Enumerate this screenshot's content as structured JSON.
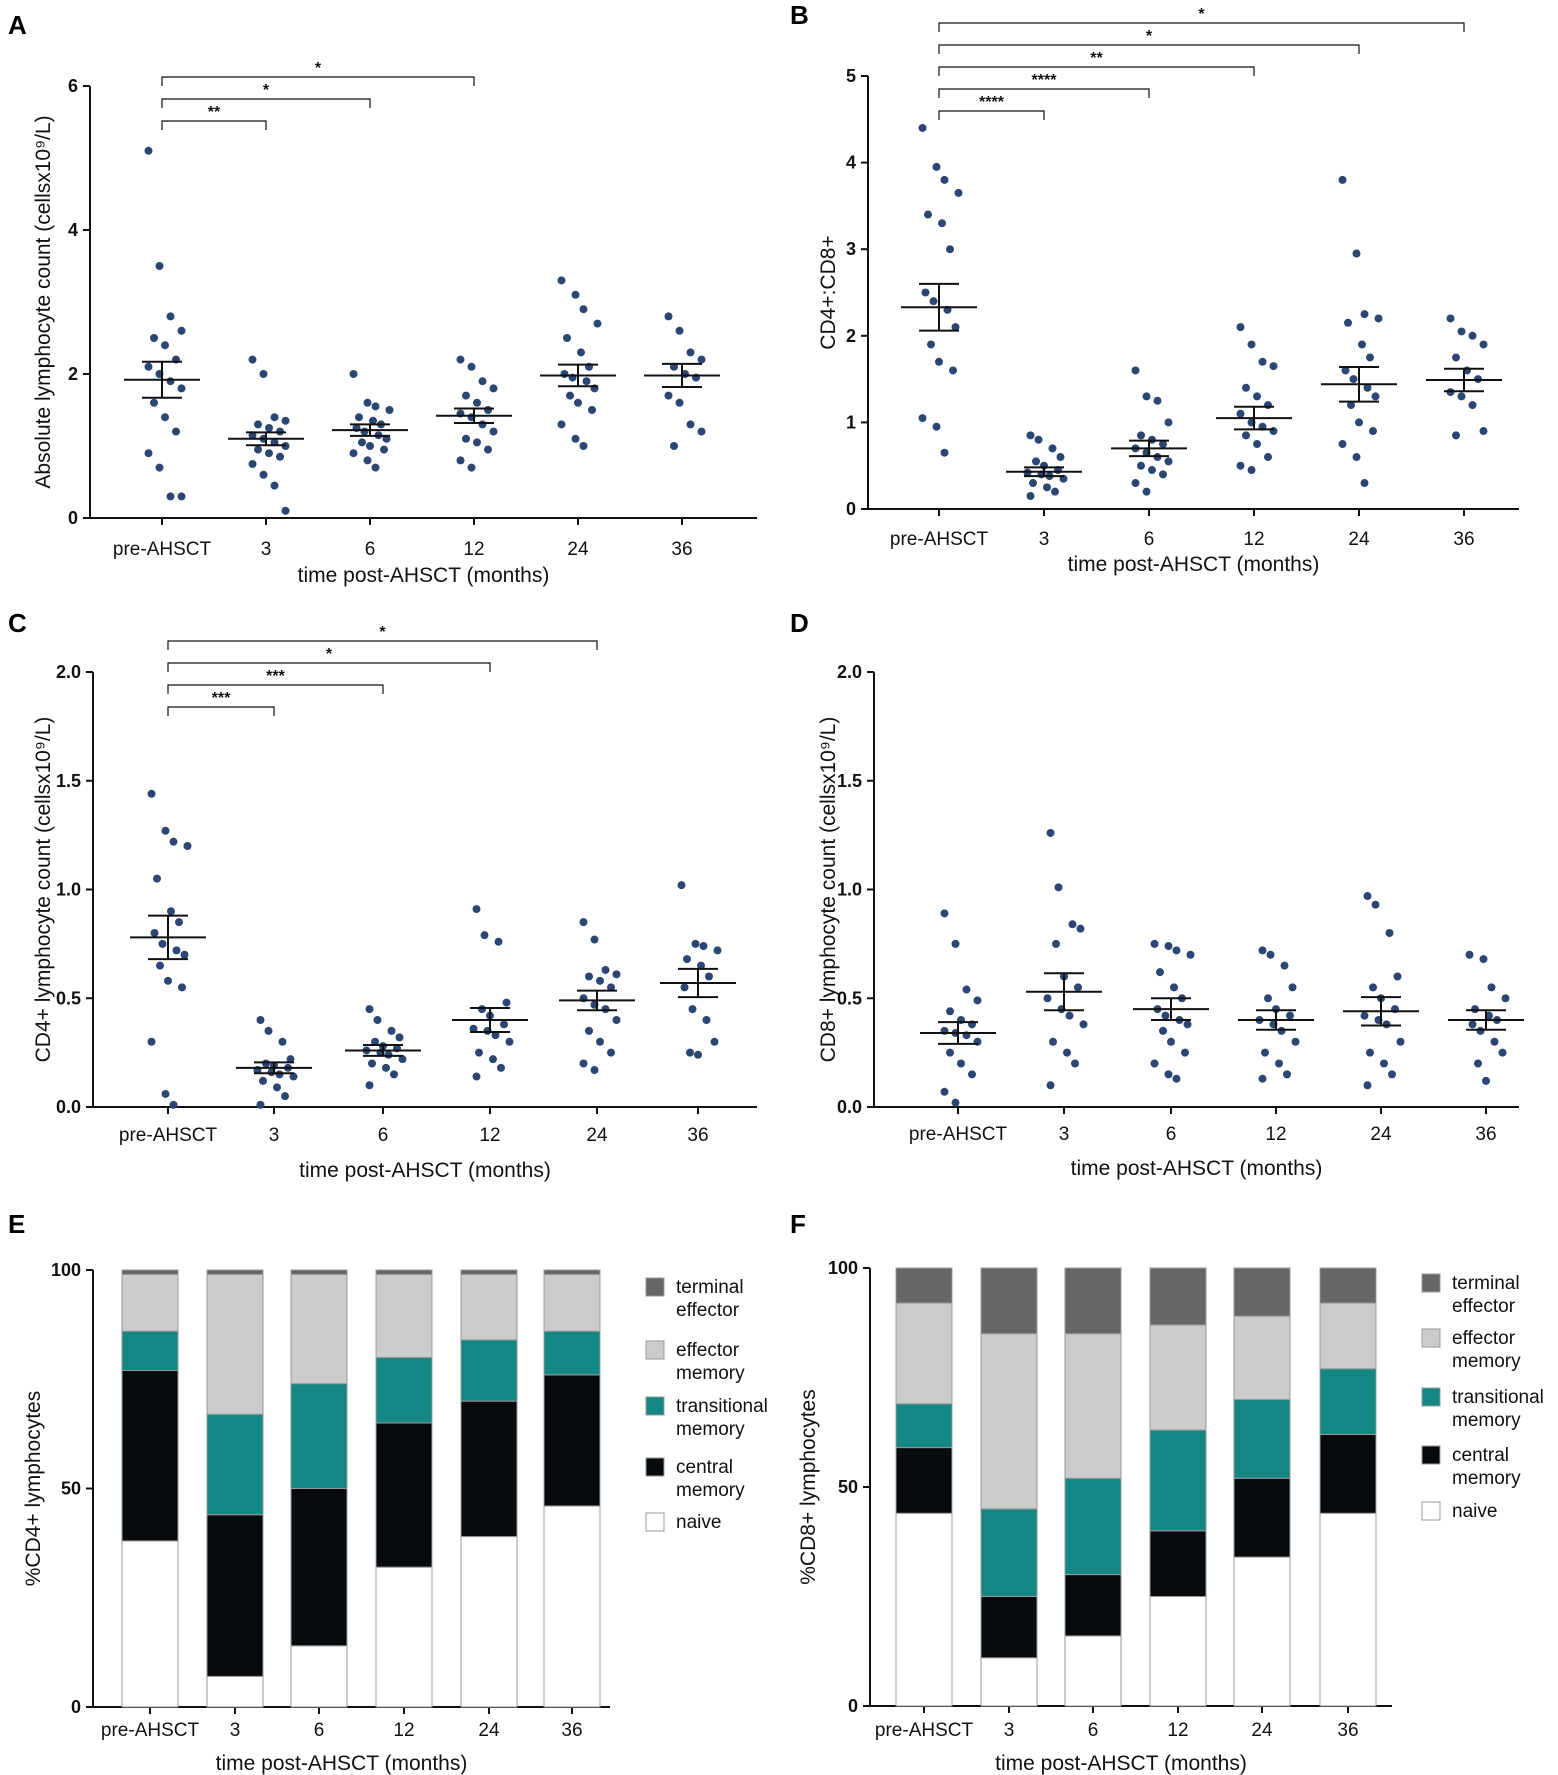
{
  "figure": {
    "panels": [
      "A",
      "B",
      "C",
      "D",
      "E",
      "F"
    ]
  },
  "colors": {
    "dot": "#2b4673",
    "axis": "#111111",
    "naive": "#ffffff",
    "central_memory": "#070b0d",
    "transitional_memory": "#148784",
    "effector_memory": "#cccccc",
    "terminal_effector": "#666666"
  },
  "chart_data": [
    {
      "panel": "A",
      "type": "scatter",
      "categories": [
        "pre-AHSCT",
        "3",
        "6",
        "12",
        "24",
        "36"
      ],
      "xlabel": "time post-AHSCT (months)",
      "ylabel": "Absolute lymphocyte count (cellsx10⁹/L)",
      "ylim": [
        0,
        6
      ],
      "yticks": [
        0,
        2,
        4,
        6
      ],
      "ytick_labels": [
        "0",
        "2",
        "4",
        "6"
      ],
      "points": [
        [
          5.1,
          3.5,
          2.8,
          2.6,
          2.5,
          2.4,
          2.2,
          2.1,
          2.0,
          1.9,
          1.8,
          1.6,
          1.4,
          1.2,
          0.9,
          0.7,
          0.3,
          0.3
        ],
        [
          2.2,
          2.0,
          1.4,
          1.35,
          1.3,
          1.25,
          1.2,
          1.15,
          1.1,
          1.05,
          1.0,
          0.95,
          0.9,
          0.85,
          0.75,
          0.6,
          0.45,
          0.1
        ],
        [
          2.0,
          1.6,
          1.55,
          1.5,
          1.4,
          1.35,
          1.3,
          1.25,
          1.2,
          1.15,
          1.1,
          1.05,
          1.0,
          0.95,
          0.9,
          0.8,
          0.7
        ],
        [
          2.2,
          2.1,
          1.9,
          1.8,
          1.7,
          1.6,
          1.5,
          1.45,
          1.4,
          1.3,
          1.2,
          1.1,
          1.05,
          0.95,
          0.8,
          0.7
        ],
        [
          3.3,
          3.1,
          2.9,
          2.7,
          2.5,
          2.3,
          2.1,
          2.0,
          1.95,
          1.9,
          1.8,
          1.7,
          1.6,
          1.5,
          1.3,
          1.1,
          1.0
        ],
        [
          2.8,
          2.6,
          2.3,
          2.2,
          2.1,
          2.0,
          1.95,
          1.7,
          1.6,
          1.3,
          1.2,
          1.0
        ]
      ],
      "mean": [
        1.92,
        1.1,
        1.22,
        1.42,
        1.98,
        1.98
      ],
      "sem": [
        0.25,
        0.09,
        0.08,
        0.1,
        0.15,
        0.16
      ],
      "significance": [
        {
          "from": 0,
          "to": 1,
          "label": "**"
        },
        {
          "from": 0,
          "to": 2,
          "label": "*"
        },
        {
          "from": 0,
          "to": 3,
          "label": "*"
        }
      ]
    },
    {
      "panel": "B",
      "type": "scatter",
      "categories": [
        "pre-AHSCT",
        "3",
        "6",
        "12",
        "24",
        "36"
      ],
      "xlabel": "time post-AHSCT (months)",
      "ylabel": "CD4+:CD8+",
      "ylim": [
        0,
        5
      ],
      "yticks": [
        0,
        1,
        2,
        3,
        4,
        5
      ],
      "ytick_labels": [
        "0",
        "1",
        "2",
        "3",
        "4",
        "5"
      ],
      "points": [
        [
          4.4,
          3.95,
          3.8,
          3.65,
          3.4,
          3.3,
          3.0,
          2.5,
          2.4,
          2.3,
          2.1,
          1.9,
          1.7,
          1.6,
          1.05,
          0.95,
          0.65
        ],
        [
          0.85,
          0.8,
          0.7,
          0.6,
          0.55,
          0.5,
          0.45,
          0.42,
          0.4,
          0.38,
          0.35,
          0.3,
          0.25,
          0.2,
          0.15
        ],
        [
          1.6,
          1.3,
          1.25,
          1.0,
          0.85,
          0.8,
          0.75,
          0.7,
          0.65,
          0.6,
          0.55,
          0.5,
          0.45,
          0.4,
          0.3,
          0.2
        ],
        [
          2.1,
          1.9,
          1.7,
          1.65,
          1.4,
          1.3,
          1.2,
          1.1,
          1.0,
          0.95,
          0.9,
          0.85,
          0.75,
          0.6,
          0.5,
          0.45
        ],
        [
          3.8,
          2.95,
          2.25,
          2.2,
          2.15,
          1.9,
          1.75,
          1.6,
          1.5,
          1.4,
          1.3,
          1.2,
          1.0,
          0.9,
          0.75,
          0.6,
          0.3
        ],
        [
          2.2,
          2.05,
          2.0,
          1.9,
          1.75,
          1.6,
          1.5,
          1.35,
          1.3,
          1.2,
          0.9,
          0.85
        ]
      ],
      "mean": [
        2.33,
        0.43,
        0.7,
        1.05,
        1.44,
        1.49
      ],
      "sem": [
        0.27,
        0.05,
        0.09,
        0.13,
        0.2,
        0.13
      ],
      "significance": [
        {
          "from": 0,
          "to": 1,
          "label": "****"
        },
        {
          "from": 0,
          "to": 2,
          "label": "****"
        },
        {
          "from": 0,
          "to": 3,
          "label": "**"
        },
        {
          "from": 0,
          "to": 4,
          "label": "*"
        },
        {
          "from": 0,
          "to": 5,
          "label": "*"
        }
      ]
    },
    {
      "panel": "C",
      "type": "scatter",
      "categories": [
        "pre-AHSCT",
        "3",
        "6",
        "12",
        "24",
        "36"
      ],
      "xlabel": "time post-AHSCT (months)",
      "ylabel": "CD4+ lymphocyte count (cellsx10⁹/L)",
      "ylim": [
        0,
        2.0
      ],
      "yticks": [
        0,
        0.5,
        1.0,
        1.5,
        2.0
      ],
      "ytick_labels": [
        "0.0",
        "0.5",
        "1.0",
        "1.5",
        "2.0"
      ],
      "points": [
        [
          1.44,
          1.27,
          1.22,
          1.2,
          1.05,
          0.9,
          0.85,
          0.8,
          0.75,
          0.72,
          0.7,
          0.65,
          0.58,
          0.55,
          0.3,
          0.06,
          0.01
        ],
        [
          0.4,
          0.35,
          0.3,
          0.22,
          0.2,
          0.19,
          0.18,
          0.17,
          0.16,
          0.15,
          0.14,
          0.12,
          0.09,
          0.05,
          0.01
        ],
        [
          0.45,
          0.4,
          0.35,
          0.32,
          0.3,
          0.28,
          0.27,
          0.26,
          0.25,
          0.24,
          0.22,
          0.2,
          0.18,
          0.15,
          0.1
        ],
        [
          0.91,
          0.79,
          0.76,
          0.48,
          0.45,
          0.42,
          0.38,
          0.36,
          0.35,
          0.33,
          0.3,
          0.25,
          0.22,
          0.18,
          0.14
        ],
        [
          0.85,
          0.77,
          0.63,
          0.61,
          0.6,
          0.58,
          0.55,
          0.5,
          0.47,
          0.45,
          0.4,
          0.35,
          0.3,
          0.25,
          0.2,
          0.17
        ],
        [
          1.02,
          0.75,
          0.74,
          0.72,
          0.68,
          0.65,
          0.6,
          0.55,
          0.45,
          0.4,
          0.3,
          0.25,
          0.24
        ]
      ],
      "mean": [
        0.78,
        0.18,
        0.26,
        0.4,
        0.49,
        0.57
      ],
      "sem": [
        0.1,
        0.025,
        0.025,
        0.055,
        0.045,
        0.065
      ],
      "significance": [
        {
          "from": 0,
          "to": 1,
          "label": "***"
        },
        {
          "from": 0,
          "to": 2,
          "label": "***"
        },
        {
          "from": 0,
          "to": 3,
          "label": "*"
        },
        {
          "from": 0,
          "to": 4,
          "label": "*"
        }
      ]
    },
    {
      "panel": "D",
      "type": "scatter",
      "categories": [
        "pre-AHSCT",
        "3",
        "6",
        "12",
        "24",
        "36"
      ],
      "xlabel": "time post-AHSCT (months)",
      "ylabel": "CD8+ lymphocyte count (cellsx10⁹/L)",
      "ylim": [
        0,
        2.0
      ],
      "yticks": [
        0,
        0.5,
        1.0,
        1.5,
        2.0
      ],
      "ytick_labels": [
        "0.0",
        "0.5",
        "1.0",
        "1.5",
        "2.0"
      ],
      "points": [
        [
          0.89,
          0.75,
          0.54,
          0.49,
          0.44,
          0.4,
          0.38,
          0.35,
          0.34,
          0.33,
          0.3,
          0.25,
          0.2,
          0.15,
          0.07,
          0.02
        ],
        [
          1.26,
          1.01,
          0.84,
          0.82,
          0.75,
          0.6,
          0.55,
          0.5,
          0.45,
          0.42,
          0.38,
          0.3,
          0.25,
          0.2,
          0.1
        ],
        [
          0.75,
          0.74,
          0.72,
          0.7,
          0.62,
          0.55,
          0.5,
          0.45,
          0.42,
          0.4,
          0.38,
          0.35,
          0.3,
          0.25,
          0.2,
          0.15,
          0.13
        ],
        [
          0.72,
          0.7,
          0.65,
          0.55,
          0.5,
          0.45,
          0.42,
          0.4,
          0.38,
          0.35,
          0.3,
          0.25,
          0.2,
          0.15,
          0.13
        ],
        [
          0.97,
          0.93,
          0.8,
          0.6,
          0.55,
          0.5,
          0.45,
          0.42,
          0.4,
          0.38,
          0.3,
          0.25,
          0.2,
          0.15,
          0.1
        ],
        [
          0.7,
          0.68,
          0.55,
          0.5,
          0.45,
          0.42,
          0.4,
          0.38,
          0.35,
          0.3,
          0.25,
          0.2,
          0.12
        ]
      ],
      "mean": [
        0.34,
        0.53,
        0.45,
        0.4,
        0.44,
        0.4
      ],
      "sem": [
        0.05,
        0.085,
        0.05,
        0.045,
        0.065,
        0.045
      ],
      "significance": []
    },
    {
      "panel": "E",
      "type": "bar",
      "stacked": true,
      "categories": [
        "pre-AHSCT",
        "3",
        "6",
        "12",
        "24",
        "36"
      ],
      "xlabel": "time post-AHSCT (months)",
      "ylabel": "%CD4+ lymphocytes",
      "ylim": [
        0,
        100
      ],
      "yticks": [
        0,
        50,
        100
      ],
      "ytick_labels": [
        "0",
        "50",
        "100"
      ],
      "series": [
        {
          "name": "naive",
          "key": "naive",
          "values": [
            38,
            7,
            14,
            32,
            39,
            46
          ]
        },
        {
          "name": "central memory",
          "key": "central_memory",
          "values": [
            39,
            37,
            36,
            33,
            31,
            30
          ]
        },
        {
          "name": "transitional memory",
          "key": "transitional_memory",
          "values": [
            9,
            23,
            24,
            15,
            14,
            10
          ]
        },
        {
          "name": "effector memory",
          "key": "effector_memory",
          "values": [
            13,
            32,
            25,
            19,
            15,
            13
          ]
        },
        {
          "name": "terminal effector",
          "key": "terminal_effector",
          "values": [
            1,
            1,
            1,
            1,
            1,
            1
          ]
        }
      ],
      "legend": [
        {
          "key": "terminal_effector",
          "lines": [
            "terminal",
            "effector"
          ]
        },
        {
          "key": "effector_memory",
          "lines": [
            "effector",
            "memory"
          ]
        },
        {
          "key": "transitional_memory",
          "lines": [
            "transitional",
            "memory"
          ]
        },
        {
          "key": "central_memory",
          "lines": [
            "central",
            "memory"
          ]
        },
        {
          "key": "naive",
          "lines": [
            "naive"
          ]
        }
      ]
    },
    {
      "panel": "F",
      "type": "bar",
      "stacked": true,
      "categories": [
        "pre-AHSCT",
        "3",
        "6",
        "12",
        "24",
        "36"
      ],
      "xlabel": "time post-AHSCT (months)",
      "ylabel": "%CD8+ lymphocytes",
      "ylim": [
        0,
        100
      ],
      "yticks": [
        0,
        50,
        100
      ],
      "ytick_labels": [
        "0",
        "50",
        "100"
      ],
      "series": [
        {
          "name": "naive",
          "key": "naive",
          "values": [
            44,
            11,
            16,
            25,
            34,
            44
          ]
        },
        {
          "name": "central memory",
          "key": "central_memory",
          "values": [
            15,
            14,
            14,
            15,
            18,
            18
          ]
        },
        {
          "name": "transitional memory",
          "key": "transitional_memory",
          "values": [
            10,
            20,
            22,
            23,
            18,
            15
          ]
        },
        {
          "name": "effector memory",
          "key": "effector_memory",
          "values": [
            23,
            40,
            33,
            24,
            19,
            15
          ]
        },
        {
          "name": "terminal effector",
          "key": "terminal_effector",
          "values": [
            8,
            15,
            15,
            13,
            11,
            8
          ]
        }
      ],
      "legend": [
        {
          "key": "terminal_effector",
          "lines": [
            "terminal",
            "effector"
          ]
        },
        {
          "key": "effector_memory",
          "lines": [
            "effector",
            "memory"
          ]
        },
        {
          "key": "transitional_memory",
          "lines": [
            "transitional",
            "memory"
          ]
        },
        {
          "key": "central_memory",
          "lines": [
            "central",
            "memory"
          ]
        },
        {
          "key": "naive",
          "lines": [
            "naive"
          ]
        }
      ]
    }
  ]
}
